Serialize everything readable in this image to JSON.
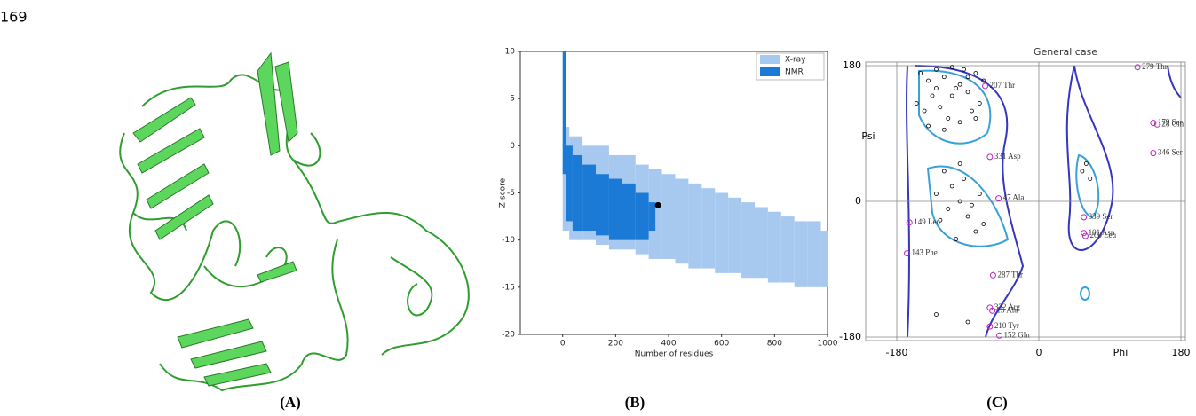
{
  "page_number": "169",
  "panel_labels": [
    "(A)",
    "(B)",
    "(C)"
  ],
  "chart_data": [
    {
      "type": "range",
      "xlabel": "Number of residues",
      "ylabel": "Z-score",
      "xlim": [
        -160,
        1000
      ],
      "ylim": [
        -20,
        10
      ],
      "xticks": [
        0,
        200,
        400,
        600,
        800,
        1000
      ],
      "yticks": [
        -20,
        -15,
        -10,
        -5,
        0,
        5,
        10
      ],
      "legend": "upper right",
      "series": [
        {
          "name": "X-ray",
          "color": "#a7c9f0",
          "x": [
            0,
            50,
            100,
            150,
            200,
            250,
            300,
            350,
            400,
            450,
            500,
            550,
            600,
            650,
            700,
            750,
            800,
            850,
            900,
            950,
            1000
          ],
          "upper": [
            2,
            1,
            0,
            0,
            -1,
            -1,
            -2,
            -2.5,
            -3,
            -3.5,
            -4,
            -4.5,
            -5,
            -5.5,
            -6,
            -6.5,
            -7,
            -7.5,
            -8,
            -8,
            -9
          ],
          "lower": [
            -9,
            -10,
            -10,
            -10.5,
            -11,
            -11,
            -11.5,
            -12,
            -12,
            -12.5,
            -13,
            -13,
            -13.5,
            -13.5,
            -14,
            -14,
            -14.5,
            -14.5,
            -15,
            -15,
            -15
          ]
        },
        {
          "name": "NMR",
          "color": "#1a7ad6",
          "x": [
            0,
            25,
            50,
            100,
            150,
            200,
            250,
            300,
            350
          ],
          "upper": [
            10,
            0,
            -1,
            -2,
            -3,
            -3.5,
            -4,
            -5,
            -6
          ],
          "lower": [
            -3,
            -8,
            -9,
            -9,
            -9.5,
            -10,
            -10,
            -10,
            -9
          ]
        }
      ],
      "highlight": {
        "x": 360,
        "y": -6.3,
        "color": "#000000"
      }
    },
    {
      "type": "ramachandran",
      "title": "General case",
      "xlabel": "Phi",
      "ylabel": "Psi",
      "xlim": [
        -180,
        180
      ],
      "ylim": [
        -180,
        180
      ],
      "xticks": [
        -180,
        0,
        180
      ],
      "yticks": [
        180,
        0,
        -180
      ],
      "points": {
        "color": "#000000",
        "x": [
          -150,
          -140,
          -130,
          -120,
          -110,
          -100,
          -90,
          -80,
          -75,
          -155,
          -145,
          -135,
          -125,
          -115,
          -105,
          -95,
          -85,
          -70,
          -140,
          -120,
          -100,
          -80,
          -130,
          -110,
          -90,
          -120,
          -110,
          -100,
          -90,
          -80,
          -130,
          -115,
          -95,
          -85,
          -105,
          -75,
          -70,
          -125,
          -100,
          60,
          65,
          55,
          -130,
          -90
        ],
        "y": [
          170,
          160,
          150,
          165,
          140,
          155,
          145,
          170,
          130,
          130,
          120,
          140,
          125,
          110,
          150,
          175,
          120,
          160,
          100,
          95,
          105,
          110,
          175,
          178,
          165,
          40,
          20,
          0,
          -20,
          -40,
          10,
          -10,
          30,
          -5,
          -50,
          10,
          -30,
          -25,
          50,
          50,
          30,
          40,
          -150,
          -160
        ]
      },
      "outliers": {
        "color": "#c020c0",
        "labels": [
          "279 Thr",
          "207 Thr",
          "179 Ser",
          "28 Gln",
          "346 Ser",
          "331 Asp",
          "47 Ala",
          "339 Ser",
          "101 Asn",
          "200 Leu",
          "149 Leu",
          "143 Phe",
          "287 Thr",
          "322 Arg",
          "15 Ala",
          "210 Tyr",
          "152 Gln"
        ],
        "x": [
          125,
          -68,
          145,
          150,
          145,
          -62,
          -51,
          57,
          57,
          59,
          -164,
          -167,
          -58,
          -62,
          -59,
          -62,
          -50
        ],
        "y": [
          178,
          153,
          104,
          102,
          64,
          59,
          4,
          -21,
          -42,
          -46,
          -28,
          -69,
          -98,
          -141,
          -145,
          -166,
          -178
        ]
      }
    }
  ]
}
